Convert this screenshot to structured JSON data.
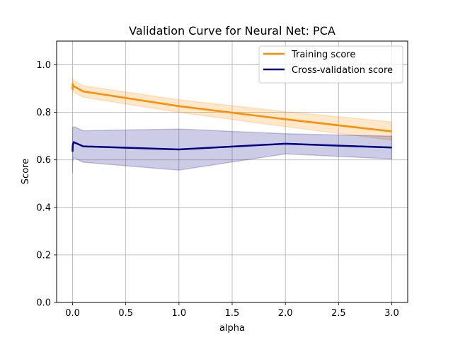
{
  "chart_data": {
    "type": "line",
    "title": "Validation Curve for Neural Net: PCA",
    "xlabel": "alpha",
    "ylabel": "Score",
    "xlim": [
      -0.15,
      3.15
    ],
    "ylim": [
      0.0,
      1.1
    ],
    "xticks": [
      0.0,
      0.5,
      1.0,
      1.5,
      2.0,
      2.5,
      3.0
    ],
    "xtick_labels": [
      "0.0",
      "0.5",
      "1.0",
      "1.5",
      "2.0",
      "2.5",
      "3.0"
    ],
    "yticks": [
      0.0,
      0.2,
      0.4,
      0.6,
      0.8,
      1.0
    ],
    "ytick_labels": [
      "0.0",
      "0.2",
      "0.4",
      "0.6",
      "0.8",
      "1.0"
    ],
    "grid": true,
    "legend_position": "top-right",
    "x": [
      0.0,
      0.001,
      0.01,
      0.1,
      1.0,
      2.0,
      3.0
    ],
    "series": [
      {
        "name": "Training score",
        "color": "#ff8c00",
        "mean": [
          0.895,
          0.92,
          0.91,
          0.888,
          0.826,
          0.771,
          0.72
        ],
        "upper": [
          0.93,
          0.945,
          0.935,
          0.912,
          0.853,
          0.803,
          0.76
        ],
        "lower": [
          0.87,
          0.895,
          0.885,
          0.864,
          0.8,
          0.74,
          0.683
        ]
      },
      {
        "name": "Cross-validation score",
        "color": "#000080",
        "mean": [
          0.635,
          0.66,
          0.675,
          0.657,
          0.644,
          0.668,
          0.652
        ],
        "upper": [
          0.72,
          0.735,
          0.74,
          0.723,
          0.73,
          0.71,
          0.7
        ],
        "lower": [
          0.545,
          0.59,
          0.61,
          0.59,
          0.557,
          0.625,
          0.604
        ]
      }
    ]
  }
}
